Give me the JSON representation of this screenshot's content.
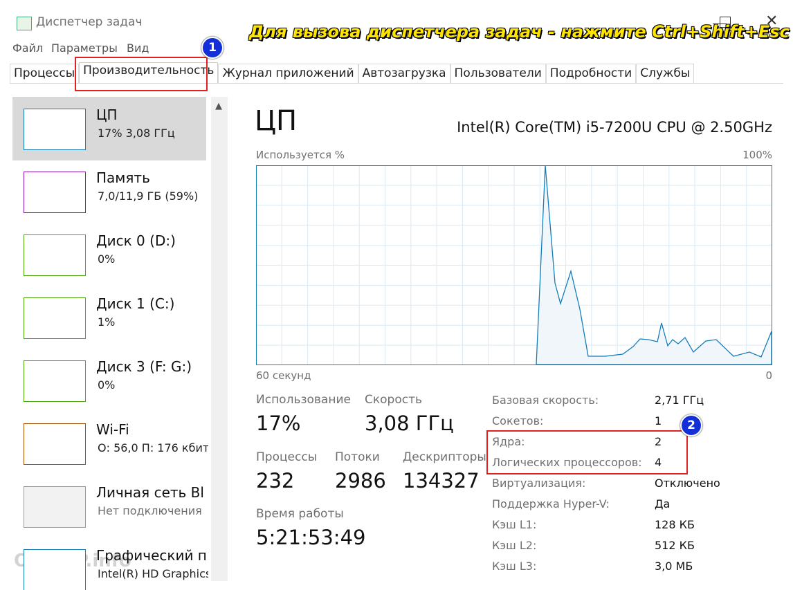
{
  "window": {
    "title": "Диспетчер задач"
  },
  "menu": [
    "Файл",
    "Параметры",
    "Вид"
  ],
  "tabs": [
    "Процессы",
    "Производительность",
    "Журнал приложений",
    "Автозагрузка",
    "Пользователи",
    "Подробности",
    "Службы"
  ],
  "annotation": {
    "text": "Для вызова диспетчера задач - нажмите Ctrl+Shift+Esc",
    "badges": [
      "1",
      "2"
    ]
  },
  "sidebar": [
    {
      "name": "ЦП",
      "detail": "17%  3,08 ГГц",
      "color": "#117dbb"
    },
    {
      "name": "Память",
      "detail": "7,0/11,9 ГБ (59%)",
      "color": "#8b12ae"
    },
    {
      "name": "Диск 0 (D:)",
      "detail": "0%",
      "color": "#4da60c"
    },
    {
      "name": "Диск 1 (C:)",
      "detail": "1%",
      "color": "#4da60c"
    },
    {
      "name": "Диск 3 (F: G:)",
      "detail": "0%",
      "color": "#4da60c"
    },
    {
      "name": "Wi-Fi",
      "detail": "О: 56,0  П: 176 кбит",
      "color": "#a74f01"
    },
    {
      "name": "Личная сеть Bl",
      "detail": "Нет подключения",
      "color": "#999999"
    },
    {
      "name": "Графический п",
      "detail": "Intel(R) HD Graphics",
      "color": "#117dbb"
    }
  ],
  "cpu": {
    "title": "ЦП",
    "model": "Intel(R) Core(TM) i5-7200U CPU @ 2.50GHz",
    "graph_label": "Используется %",
    "graph_max": "100%",
    "graph_time": "60 секунд",
    "graph_min": "0"
  },
  "stats": [
    {
      "label": "Использование",
      "value": "17%"
    },
    {
      "label": "Скорость",
      "value": "3,08 ГГц"
    },
    {
      "label": "Процессы",
      "value": "232"
    },
    {
      "label": "Потоки",
      "value": "2986"
    },
    {
      "label": "Дескрипторы",
      "value": "134327"
    },
    {
      "label": "Время работы",
      "value": "5:21:53:49"
    }
  ],
  "specs": [
    {
      "label": "Базовая скорость:",
      "value": "2,71 ГГц"
    },
    {
      "label": "Сокетов:",
      "value": "1"
    },
    {
      "label": "Ядра:",
      "value": "2"
    },
    {
      "label": "Логических процессоров:",
      "value": "4"
    },
    {
      "label": "Виртуализация:",
      "value": "Отключено"
    },
    {
      "label": "Поддержка Hyper-V:",
      "value": "Да"
    },
    {
      "label": "Кэш L1:",
      "value": "128 КБ"
    },
    {
      "label": "Кэш L2:",
      "value": "512 КБ"
    },
    {
      "label": "Кэш L3:",
      "value": "3,0 МБ"
    }
  ],
  "watermark": "OCOMP.info"
}
